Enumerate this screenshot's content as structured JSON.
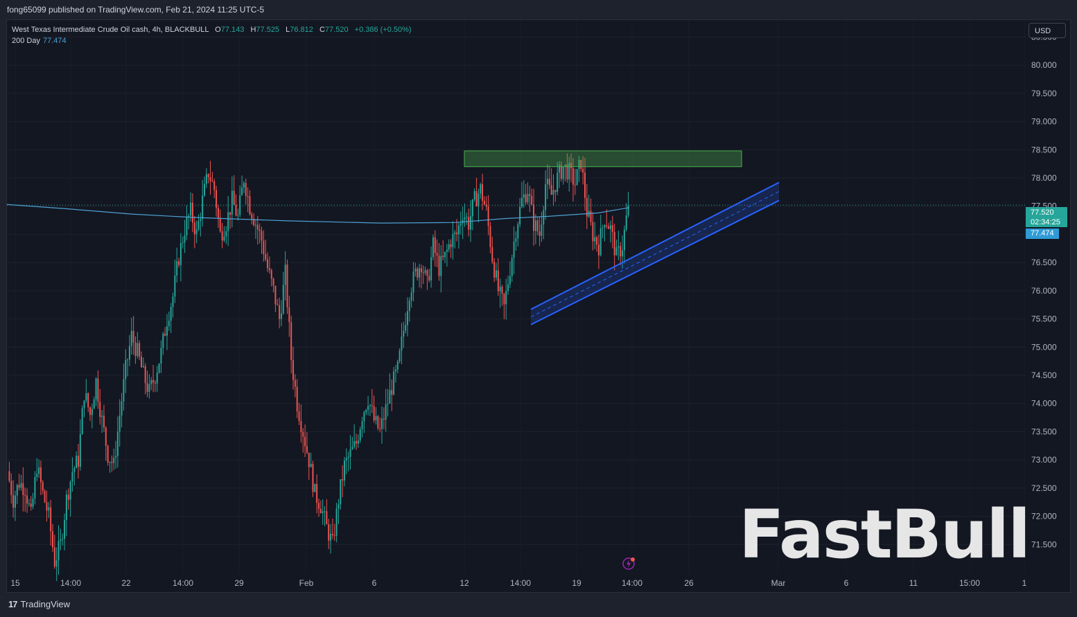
{
  "header": {
    "published": "fong65099 published on TradingView.com, Feb 21, 2024 11:25 UTC-5"
  },
  "legend": {
    "symbol": "West Texas Intermediate Crude Oil cash, 4h, BLACKBULL",
    "o_label": "O",
    "o": "77.143",
    "h_label": "H",
    "h": "77.525",
    "l_label": "L",
    "l": "76.812",
    "c_label": "C",
    "c": "77.520",
    "change": "+0.386 (+0.50%)",
    "ma_label": "200 Day",
    "ma_value": "77.474"
  },
  "currency_button": "USD",
  "price_tags": {
    "last": "77.520",
    "countdown": "02:34:25",
    "ma": "77.474"
  },
  "footer": {
    "brand": "TradingView"
  },
  "watermark": "FastBull",
  "colors": {
    "up": "#26a69a",
    "down": "#ef5350",
    "ma": "#4ea1d3",
    "channel": "#2962ff",
    "zone": "#4caf50",
    "background": "#131722"
  },
  "chart_data": {
    "type": "candlestick",
    "ylim": [
      71.0,
      80.8
    ],
    "y_ticks": [
      "80.500",
      "80.000",
      "79.500",
      "79.000",
      "78.500",
      "78.000",
      "77.500",
      "77.000",
      "76.500",
      "76.000",
      "75.500",
      "75.000",
      "74.500",
      "74.000",
      "73.500",
      "73.000",
      "72.500",
      "72.000",
      "71.500"
    ],
    "x_ticks": [
      "15",
      "14:00",
      "22",
      "14:00",
      "29",
      "Feb",
      "6",
      "12",
      "14:00",
      "19",
      "14:00",
      "26",
      "Mar",
      "6",
      "11",
      "15:00",
      "1"
    ],
    "close_path": [
      72.8,
      72.3,
      72.6,
      72.5,
      72.0,
      72.9,
      72.4,
      72.0,
      71.2,
      71.5,
      72.3,
      72.8,
      73.0,
      74.2,
      73.8,
      74.4,
      73.7,
      73.1,
      72.9,
      73.8,
      74.6,
      75.2,
      74.9,
      74.5,
      74.2,
      74.5,
      74.9,
      75.5,
      75.9,
      76.6,
      77.1,
      77.4,
      77.0,
      77.6,
      78.1,
      77.8,
      77.0,
      77.2,
      77.6,
      77.3,
      78.0,
      77.5,
      77.2,
      76.9,
      76.4,
      76.0,
      75.5,
      76.3,
      74.8,
      74.0,
      73.5,
      73.0,
      72.4,
      72.2,
      71.8,
      71.5,
      72.3,
      72.9,
      73.1,
      73.3,
      73.8,
      74.1,
      73.7,
      73.5,
      73.9,
      74.3,
      74.6,
      75.3,
      76.0,
      76.3,
      76.5,
      76.1,
      76.8,
      76.4,
      76.6,
      76.9,
      77.0,
      77.4,
      77.2,
      77.6,
      77.8,
      77.4,
      76.6,
      76.0,
      75.7,
      76.4,
      77.1,
      77.6,
      77.8,
      77.2,
      77.0,
      77.9,
      77.7,
      78.0,
      78.2,
      78.1,
      77.9,
      78.3,
      77.4,
      77.0,
      76.8,
      77.3,
      77.1,
      76.6,
      76.8,
      77.52
    ],
    "ma200_label": "200 Day",
    "ma200": [
      {
        "t": 0.0,
        "v": 77.53
      },
      {
        "t": 0.1,
        "v": 77.45
      },
      {
        "t": 0.2,
        "v": 77.36
      },
      {
        "t": 0.3,
        "v": 77.3
      },
      {
        "t": 0.45,
        "v": 77.24
      },
      {
        "t": 0.6,
        "v": 77.2
      },
      {
        "t": 0.72,
        "v": 77.21
      },
      {
        "t": 0.8,
        "v": 77.28
      },
      {
        "t": 0.87,
        "v": 77.32
      },
      {
        "t": 0.95,
        "v": 77.38
      },
      {
        "t": 1.0,
        "v": 77.474
      }
    ],
    "resistance_zone": {
      "from": "Feb 12",
      "to": "Feb 29",
      "low": 78.2,
      "high": 78.48
    },
    "channel": {
      "from": "Feb 15",
      "to": "Mar 1",
      "start_low": 75.4,
      "start_high": 75.67,
      "end_low": 77.6,
      "end_high": 77.92
    },
    "last_price": 77.52,
    "ma_value": 77.474
  }
}
